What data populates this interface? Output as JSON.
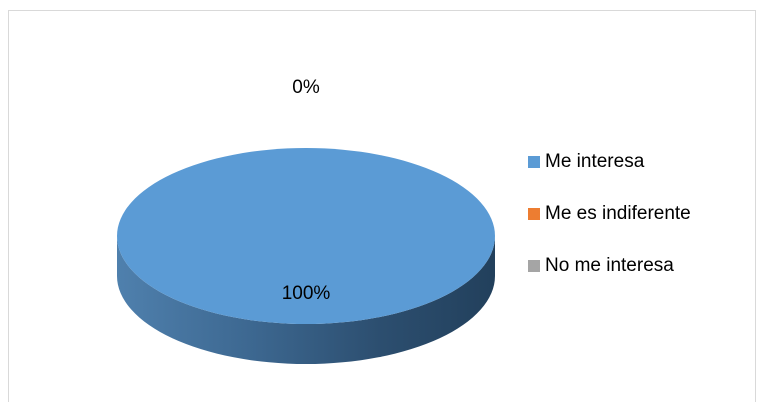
{
  "chart_data": {
    "type": "pie",
    "title": "",
    "style": "3d",
    "categories": [
      "Me interesa",
      "Me es indiferente",
      "No me interesa"
    ],
    "values": [
      100,
      0,
      0
    ],
    "labels": [
      "100%",
      "0%",
      ""
    ],
    "colors": [
      "#5b9bd5",
      "#ed7d31",
      "#a5a5a5"
    ],
    "legend_position": "right"
  }
}
